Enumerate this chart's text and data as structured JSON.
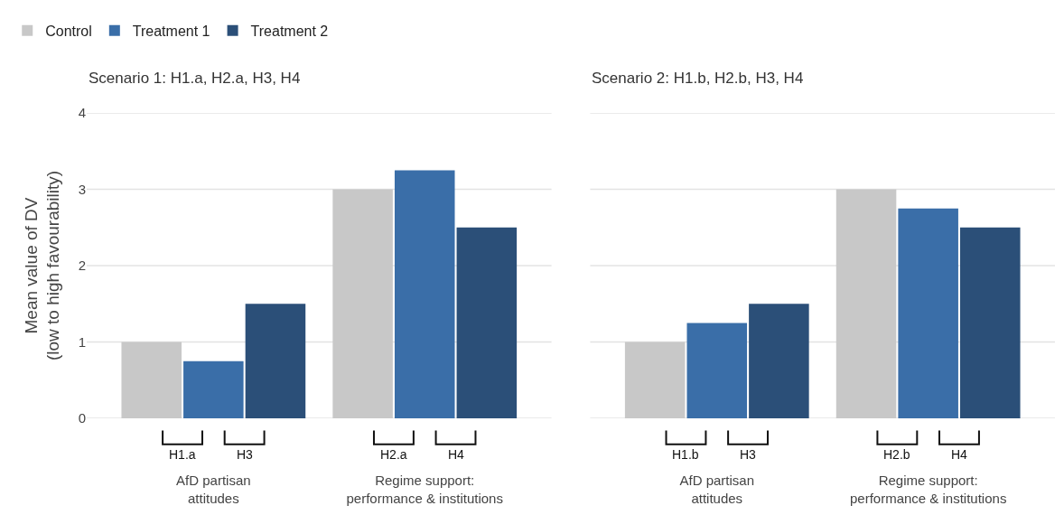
{
  "chart_data": [
    {
      "type": "bar",
      "title": "Scenario 1: H1.a, H2.a, H3, H4",
      "ylabel": "Mean value of DV\n(low to high favourability)",
      "categories": [
        "AfD partisan\nattitudes",
        "Regime support:\nperformance & institutions"
      ],
      "series": [
        {
          "name": "Control",
          "color": "#c8c8c8",
          "values": [
            1,
            3
          ]
        },
        {
          "name": "Treatment 1",
          "color": "#3a6ea8",
          "values": [
            0.75,
            3.25
          ]
        },
        {
          "name": "Treatment 2",
          "color": "#2b4f78",
          "values": [
            1.5,
            2.5
          ]
        }
      ],
      "ylim": [
        0,
        4
      ],
      "yticks": [
        0,
        1,
        2,
        3,
        4
      ],
      "grid": "y",
      "legend": "top left",
      "annotations": [
        "H1.a",
        "H3",
        "H2.a",
        "H4"
      ]
    },
    {
      "type": "bar",
      "title": "Scenario 2: H1.b, H2.b, H3, H4",
      "categories": [
        "AfD partisan\nattitudes",
        "Regime support:\nperformance & institutions"
      ],
      "series": [
        {
          "color": "#c8c8c8",
          "values": [
            1,
            3
          ]
        },
        {
          "color": "#3a6ea8",
          "values": [
            1.25,
            2.75
          ]
        },
        {
          "color": "#2b4f78",
          "values": [
            1.5,
            2.5
          ]
        }
      ],
      "ylim": [
        0,
        4
      ],
      "yticks": [
        0,
        1,
        2,
        3,
        4
      ],
      "grid": "y",
      "tick_labels": "x",
      "annotations": [
        "H1.b",
        "H3",
        "H2.b",
        "H4"
      ]
    }
  ]
}
